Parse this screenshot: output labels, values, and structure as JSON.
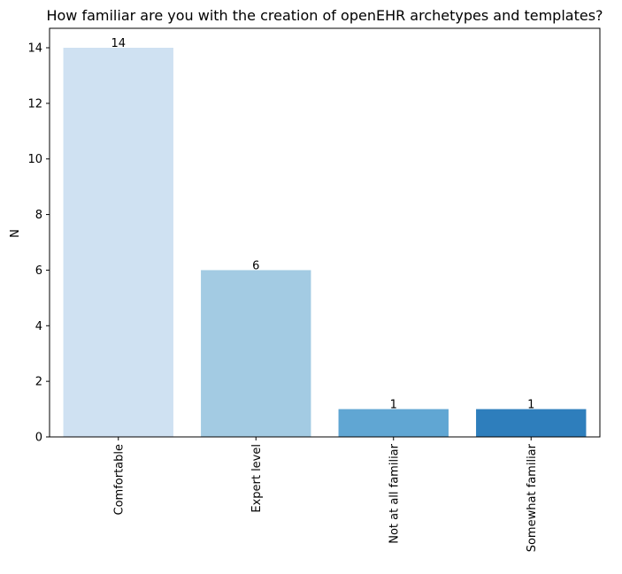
{
  "chart_data": {
    "type": "bar",
    "title": "How familiar are you with the creation of openEHR archetypes and templates?",
    "xlabel": "",
    "ylabel": "N",
    "categories": [
      "Comfortable",
      "Expert level",
      "Not at all familiar",
      "Somewhat familiar"
    ],
    "values": [
      14,
      6,
      1,
      1
    ],
    "data_labels": [
      "14",
      "6",
      "1",
      "1"
    ],
    "colors": [
      "#cfe1f2",
      "#a3cbe3",
      "#60a6d3",
      "#2e7ebc"
    ],
    "ylim": [
      0,
      14.7
    ],
    "yticks": [
      0,
      2,
      4,
      6,
      8,
      10,
      12,
      14
    ],
    "ytick_labels": [
      "0",
      "2",
      "4",
      "6",
      "8",
      "10",
      "12",
      "14"
    ],
    "grid": false,
    "legend": "none"
  }
}
